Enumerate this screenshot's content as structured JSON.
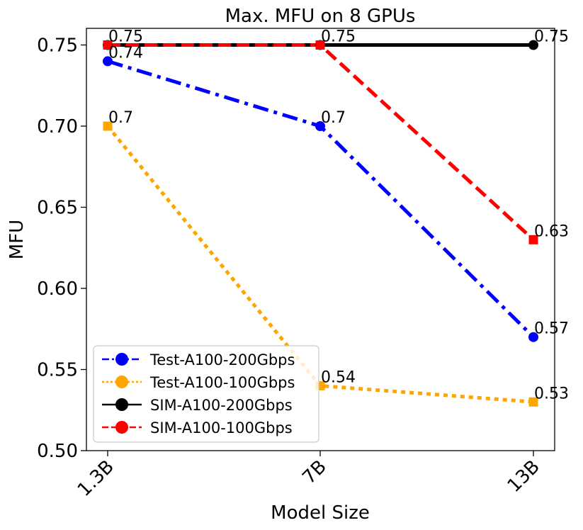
{
  "chart_data": {
    "type": "line",
    "title": "Max. MFU on 8 GPUs",
    "xlabel": "Model Size",
    "ylabel": "MFU",
    "categories": [
      "1.3B",
      "7B",
      "13B"
    ],
    "ylim": [
      0.5,
      0.76
    ],
    "yticks": [
      0.5,
      0.55,
      0.6,
      0.65,
      0.7,
      0.75
    ],
    "ytick_labels": [
      "0.50",
      "0.55",
      "0.60",
      "0.65",
      "0.70",
      "0.75"
    ],
    "grid": false,
    "legend_position": "lower-left",
    "series": [
      {
        "name": "Test-A100-200Gbps",
        "values": [
          0.74,
          0.7,
          0.57
        ],
        "labels": [
          "0.74",
          "0.7",
          "0.57"
        ],
        "color": "#0000ff",
        "line_style": "dashdot",
        "marker": "circle"
      },
      {
        "name": "Test-A100-100Gbps",
        "values": [
          0.7,
          0.54,
          0.53
        ],
        "labels": [
          "0.7",
          "0.54",
          "0.53"
        ],
        "color": "#ffa500",
        "line_style": "dotted",
        "marker": "square"
      },
      {
        "name": "SIM-A100-200Gbps",
        "values": [
          0.75,
          0.75,
          0.75
        ],
        "labels": [
          "",
          "",
          "0.75"
        ],
        "color": "#000000",
        "line_style": "solid",
        "marker": "circle"
      },
      {
        "name": "SIM-A100-100Gbps",
        "values": [
          0.75,
          0.75,
          0.63
        ],
        "labels": [
          "0.75",
          "0.75",
          "0.63"
        ],
        "color": "#ff0000",
        "line_style": "dashed",
        "marker": "square"
      }
    ]
  }
}
